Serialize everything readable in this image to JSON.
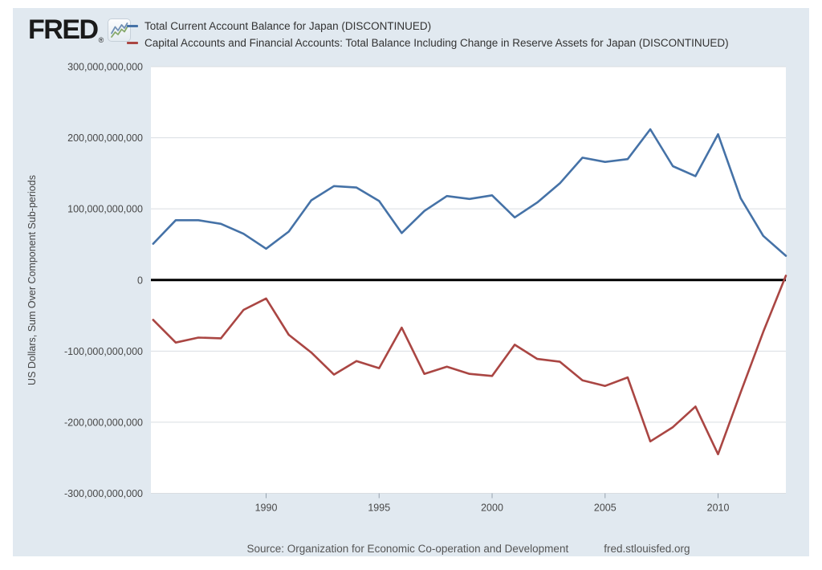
{
  "header": {
    "brand": "FRED",
    "registered_mark": "®"
  },
  "chart_data": {
    "type": "line",
    "x": [
      1985,
      1986,
      1987,
      1988,
      1989,
      1990,
      1991,
      1992,
      1993,
      1994,
      1995,
      1996,
      1997,
      1998,
      1999,
      2000,
      2001,
      2002,
      2003,
      2004,
      2005,
      2006,
      2007,
      2008,
      2009,
      2010,
      2011,
      2012,
      2013
    ],
    "series": [
      {
        "name": "Total Current Account Balance for Japan (DISCONTINUED)",
        "color": "#4572a7",
        "values_usd_billions": [
          51,
          84,
          84,
          79,
          65,
          44,
          68,
          112,
          132,
          130,
          111,
          66,
          97,
          118,
          114,
          119,
          88,
          109,
          136,
          172,
          166,
          170,
          212,
          160,
          146,
          205,
          115,
          62,
          34
        ]
      },
      {
        "name": "Capital Accounts and Financial Accounts: Total Balance Including Change in Reserve Assets for Japan (DISCONTINUED)",
        "color": "#aa4643",
        "values_usd_billions": [
          -56,
          -88,
          -81,
          -82,
          -42,
          -26,
          -77,
          -102,
          -133,
          -114,
          -124,
          -67,
          -132,
          -122,
          -132,
          -135,
          -91,
          -111,
          -115,
          -141,
          -149,
          -137,
          -227,
          -207,
          -178,
          -245,
          -158,
          -73,
          6
        ]
      }
    ],
    "ylabel": "US Dollars, Sum Over Component Sub-periods",
    "xlim_years": [
      1985,
      2013
    ],
    "ylim_usd_billions": [
      -300,
      300
    ],
    "y_tick_labels": [
      "300,000,000,000",
      "200,000,000,000",
      "100,000,000,000",
      "0",
      "-100,000,000,000",
      "-200,000,000,000",
      "-300,000,000,000"
    ],
    "y_tick_values_billions": [
      300,
      200,
      100,
      0,
      -100,
      -200,
      -300
    ],
    "x_tick_labels": [
      "1990",
      "1995",
      "2000",
      "2005",
      "2010"
    ],
    "x_tick_values": [
      1990,
      1995,
      2000,
      2005,
      2010
    ],
    "grid": true,
    "zero_line": true,
    "legend_position": "top"
  },
  "footer": {
    "source": "Source: Organization for Economic Co-operation and Development",
    "site": "fred.stlouisfed.org"
  }
}
